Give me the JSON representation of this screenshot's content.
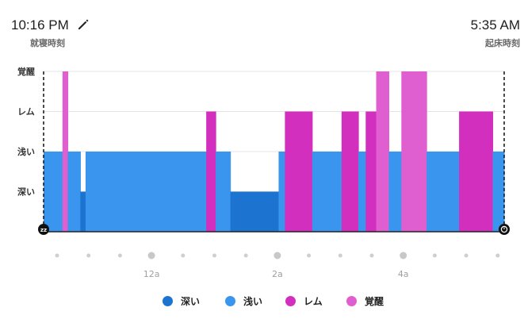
{
  "header": {
    "bedtime": "10:16 PM",
    "bedtime_label": "就寝時刻",
    "wake_time": "5:35 AM",
    "wake_label": "起床時刻"
  },
  "colors": {
    "deep": "#1d74d0",
    "light": "#3a95ee",
    "rem": "#d32fbf",
    "awake": "#e05fd0"
  },
  "chart_data": {
    "type": "bar",
    "y_categories": [
      "深い",
      "浅い",
      "レム",
      "覚醒"
    ],
    "x_ticks": [
      {
        "label": "12a",
        "minute": 104
      },
      {
        "label": "2a",
        "minute": 224
      },
      {
        "label": "4a",
        "minute": 344
      }
    ],
    "start": "10:16 PM",
    "end": "5:35 AM",
    "total_minutes": 439,
    "grid": true,
    "segments": [
      {
        "stage": "light",
        "from": 0,
        "to": 18
      },
      {
        "stage": "awake",
        "from": 18,
        "to": 23
      },
      {
        "stage": "light",
        "from": 23,
        "to": 35
      },
      {
        "stage": "deep",
        "from": 35,
        "to": 40
      },
      {
        "stage": "light",
        "from": 40,
        "to": 155
      },
      {
        "stage": "rem",
        "from": 155,
        "to": 164
      },
      {
        "stage": "light",
        "from": 164,
        "to": 178
      },
      {
        "stage": "deep",
        "from": 178,
        "to": 224
      },
      {
        "stage": "light",
        "from": 224,
        "to": 230
      },
      {
        "stage": "rem",
        "from": 230,
        "to": 256
      },
      {
        "stage": "light",
        "from": 256,
        "to": 284
      },
      {
        "stage": "rem",
        "from": 284,
        "to": 300
      },
      {
        "stage": "light",
        "from": 300,
        "to": 307
      },
      {
        "stage": "rem",
        "from": 307,
        "to": 317
      },
      {
        "stage": "awake",
        "from": 317,
        "to": 329
      },
      {
        "stage": "light",
        "from": 329,
        "to": 341
      },
      {
        "stage": "awake",
        "from": 341,
        "to": 365
      },
      {
        "stage": "light",
        "from": 365,
        "to": 396
      },
      {
        "stage": "rem",
        "from": 396,
        "to": 428
      },
      {
        "stage": "light",
        "from": 428,
        "to": 439
      }
    ]
  },
  "legend": [
    {
      "label": "深い",
      "stage": "deep"
    },
    {
      "label": "浅い",
      "stage": "light"
    },
    {
      "label": "レム",
      "stage": "rem"
    },
    {
      "label": "覚醒",
      "stage": "awake"
    }
  ],
  "icons": {
    "start": "sleep-zz-icon",
    "end": "alarm-clock-icon",
    "edit": "pencil-icon"
  }
}
